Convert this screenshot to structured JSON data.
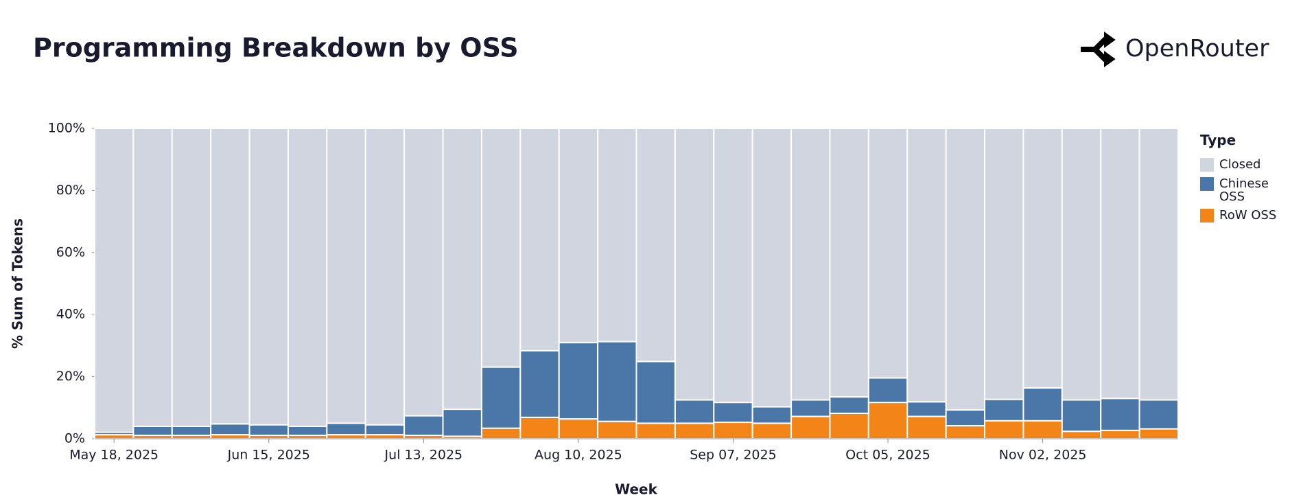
{
  "header": {
    "brand": "OpenRouter"
  },
  "chart_data": {
    "type": "stacked_bar",
    "title": "Programming Breakdown by OSS",
    "x_label": "Week",
    "y_label": "% Sum of Tokens",
    "legend_title": "Type",
    "categories": [
      "May 18, 2025",
      null,
      null,
      null,
      "Jun 15, 2025",
      null,
      null,
      null,
      "Jul 13, 2025",
      null,
      null,
      null,
      "Aug 10, 2025",
      null,
      null,
      null,
      "Sep 07, 2025",
      null,
      null,
      null,
      "Oct 05, 2025",
      null,
      null,
      null,
      "Nov 02, 2025",
      null,
      null,
      null
    ],
    "series": [
      {
        "name": "Closed",
        "color": "#d0d5e0",
        "values": [
          97.9,
          96.0,
          96.0,
          95.2,
          95.5,
          96.0,
          95.0,
          95.5,
          92.6,
          90.5,
          76.9,
          71.6,
          69.0,
          68.7,
          75.1,
          87.5,
          88.3,
          89.7,
          87.5,
          86.5,
          80.4,
          88.1,
          90.7,
          87.3,
          83.6,
          87.5,
          87.0,
          87.5
        ]
      },
      {
        "name": "Chinese OSS",
        "color": "#4a76a8",
        "values": [
          0.8,
          2.9,
          2.9,
          3.5,
          3.4,
          2.9,
          3.7,
          3.2,
          6.3,
          8.7,
          19.7,
          21.5,
          24.6,
          25.7,
          19.9,
          7.5,
          6.4,
          5.3,
          5.3,
          5.3,
          7.9,
          4.7,
          5.1,
          6.9,
          10.6,
          10.1,
          10.3,
          9.3
        ]
      },
      {
        "name": "RoW OSS",
        "color": "#f28418",
        "values": [
          1.3,
          1.1,
          1.1,
          1.3,
          1.1,
          1.1,
          1.3,
          1.3,
          1.1,
          0.8,
          3.4,
          6.9,
          6.4,
          5.6,
          5.0,
          5.0,
          5.3,
          5.0,
          7.2,
          8.2,
          11.7,
          7.2,
          4.2,
          5.8,
          5.8,
          2.4,
          2.7,
          3.2
        ]
      }
    ],
    "ylim": [
      0,
      100
    ],
    "yticks": [
      {
        "value": 0,
        "label": "0%"
      },
      {
        "value": 20,
        "label": "20%"
      },
      {
        "value": 40,
        "label": "40%"
      },
      {
        "value": 60,
        "label": "60%"
      },
      {
        "value": 80,
        "label": "80%"
      },
      {
        "value": 100,
        "label": "100%"
      }
    ]
  }
}
